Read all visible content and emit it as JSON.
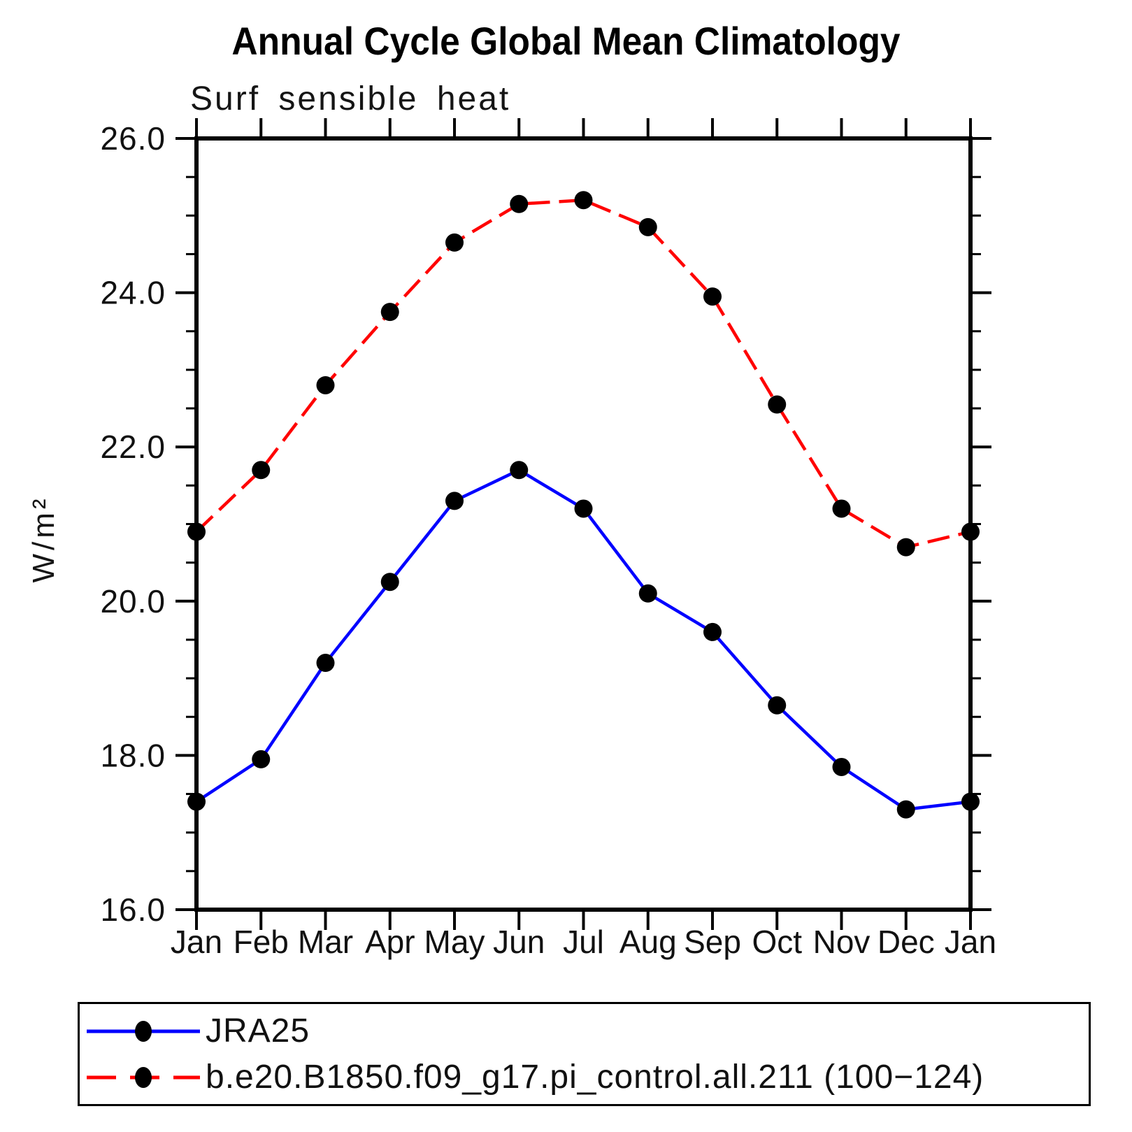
{
  "title": "Annual Cycle Global Mean Climatology",
  "subtitle": "Surf sensible heat",
  "axis_color": "#000000",
  "chart_data": {
    "type": "line",
    "title": "Annual Cycle Global Mean Climatology",
    "subtitle": "Surf sensible heat",
    "xlabel": "",
    "ylabel": "W/m²",
    "categories": [
      "Jan",
      "Feb",
      "Mar",
      "Apr",
      "May",
      "Jun",
      "Jul",
      "Aug",
      "Sep",
      "Oct",
      "Nov",
      "Dec",
      "Jan"
    ],
    "ylim": [
      16.0,
      26.0
    ],
    "y_major_tick_step": 2.0,
    "y_minor_tick_step": 0.5,
    "y_tick_labels": [
      "16.0",
      "18.0",
      "20.0",
      "22.0",
      "24.0",
      "26.0"
    ],
    "grid": false,
    "legend_position": "bottom",
    "series": [
      {
        "name": "JRA25",
        "line_color": "#0000ff",
        "line_style": "solid",
        "marker": "filled-circle",
        "marker_color": "#000000",
        "values": [
          17.4,
          17.95,
          19.2,
          20.25,
          21.3,
          21.7,
          21.2,
          20.1,
          19.6,
          18.65,
          17.85,
          17.3,
          17.4
        ]
      },
      {
        "name": "b.e20.B1850.f09_g17.pi_control.all.211 (100−124)",
        "line_color": "#ff0000",
        "line_style": "dashed",
        "marker": "filled-circle",
        "marker_color": "#000000",
        "values": [
          20.9,
          21.7,
          22.8,
          23.75,
          24.65,
          25.15,
          25.2,
          24.85,
          23.95,
          22.55,
          21.2,
          20.7,
          20.9
        ]
      }
    ]
  }
}
